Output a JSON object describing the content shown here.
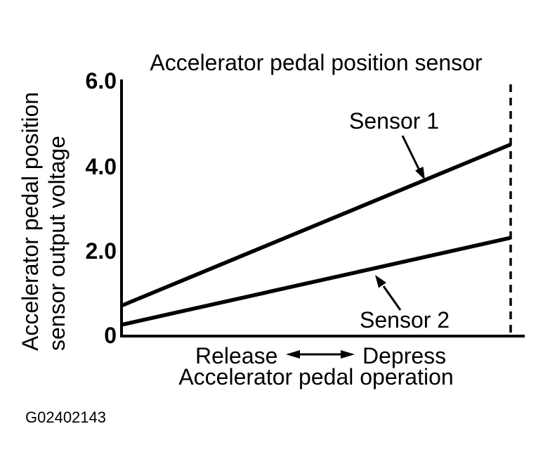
{
  "figure": {
    "id_label": "G02402143",
    "ink_color": "#000000",
    "background_color": "#ffffff"
  },
  "chart_data": {
    "type": "line",
    "title": "Accelerator pedal position sensor",
    "ylabel": "Accelerator pedal position sensor output voltage",
    "ylabel_lines": [
      "Accelerator pedal position",
      "sensor output voltage"
    ],
    "xlabel": "Accelerator pedal operation",
    "x_direction_labels": {
      "left": "Release",
      "right": "Depress"
    },
    "ylim": [
      0,
      6.0
    ],
    "ytick_labels": [
      "6.0",
      "4.0",
      "2.0",
      "0"
    ],
    "ytick_values": [
      6.0,
      4.0,
      2.0,
      0
    ],
    "x": [
      "release",
      "full depress"
    ],
    "series": [
      {
        "name": "Sensor 1",
        "values": [
          0.7,
          4.5
        ]
      },
      {
        "name": "Sensor 2",
        "values": [
          0.25,
          2.3
        ]
      }
    ],
    "annotations": {
      "full_depress_boundary": "dashed vertical line at full-depress end of pedal travel"
    },
    "grid": false,
    "legend_position": "inline-labels"
  }
}
